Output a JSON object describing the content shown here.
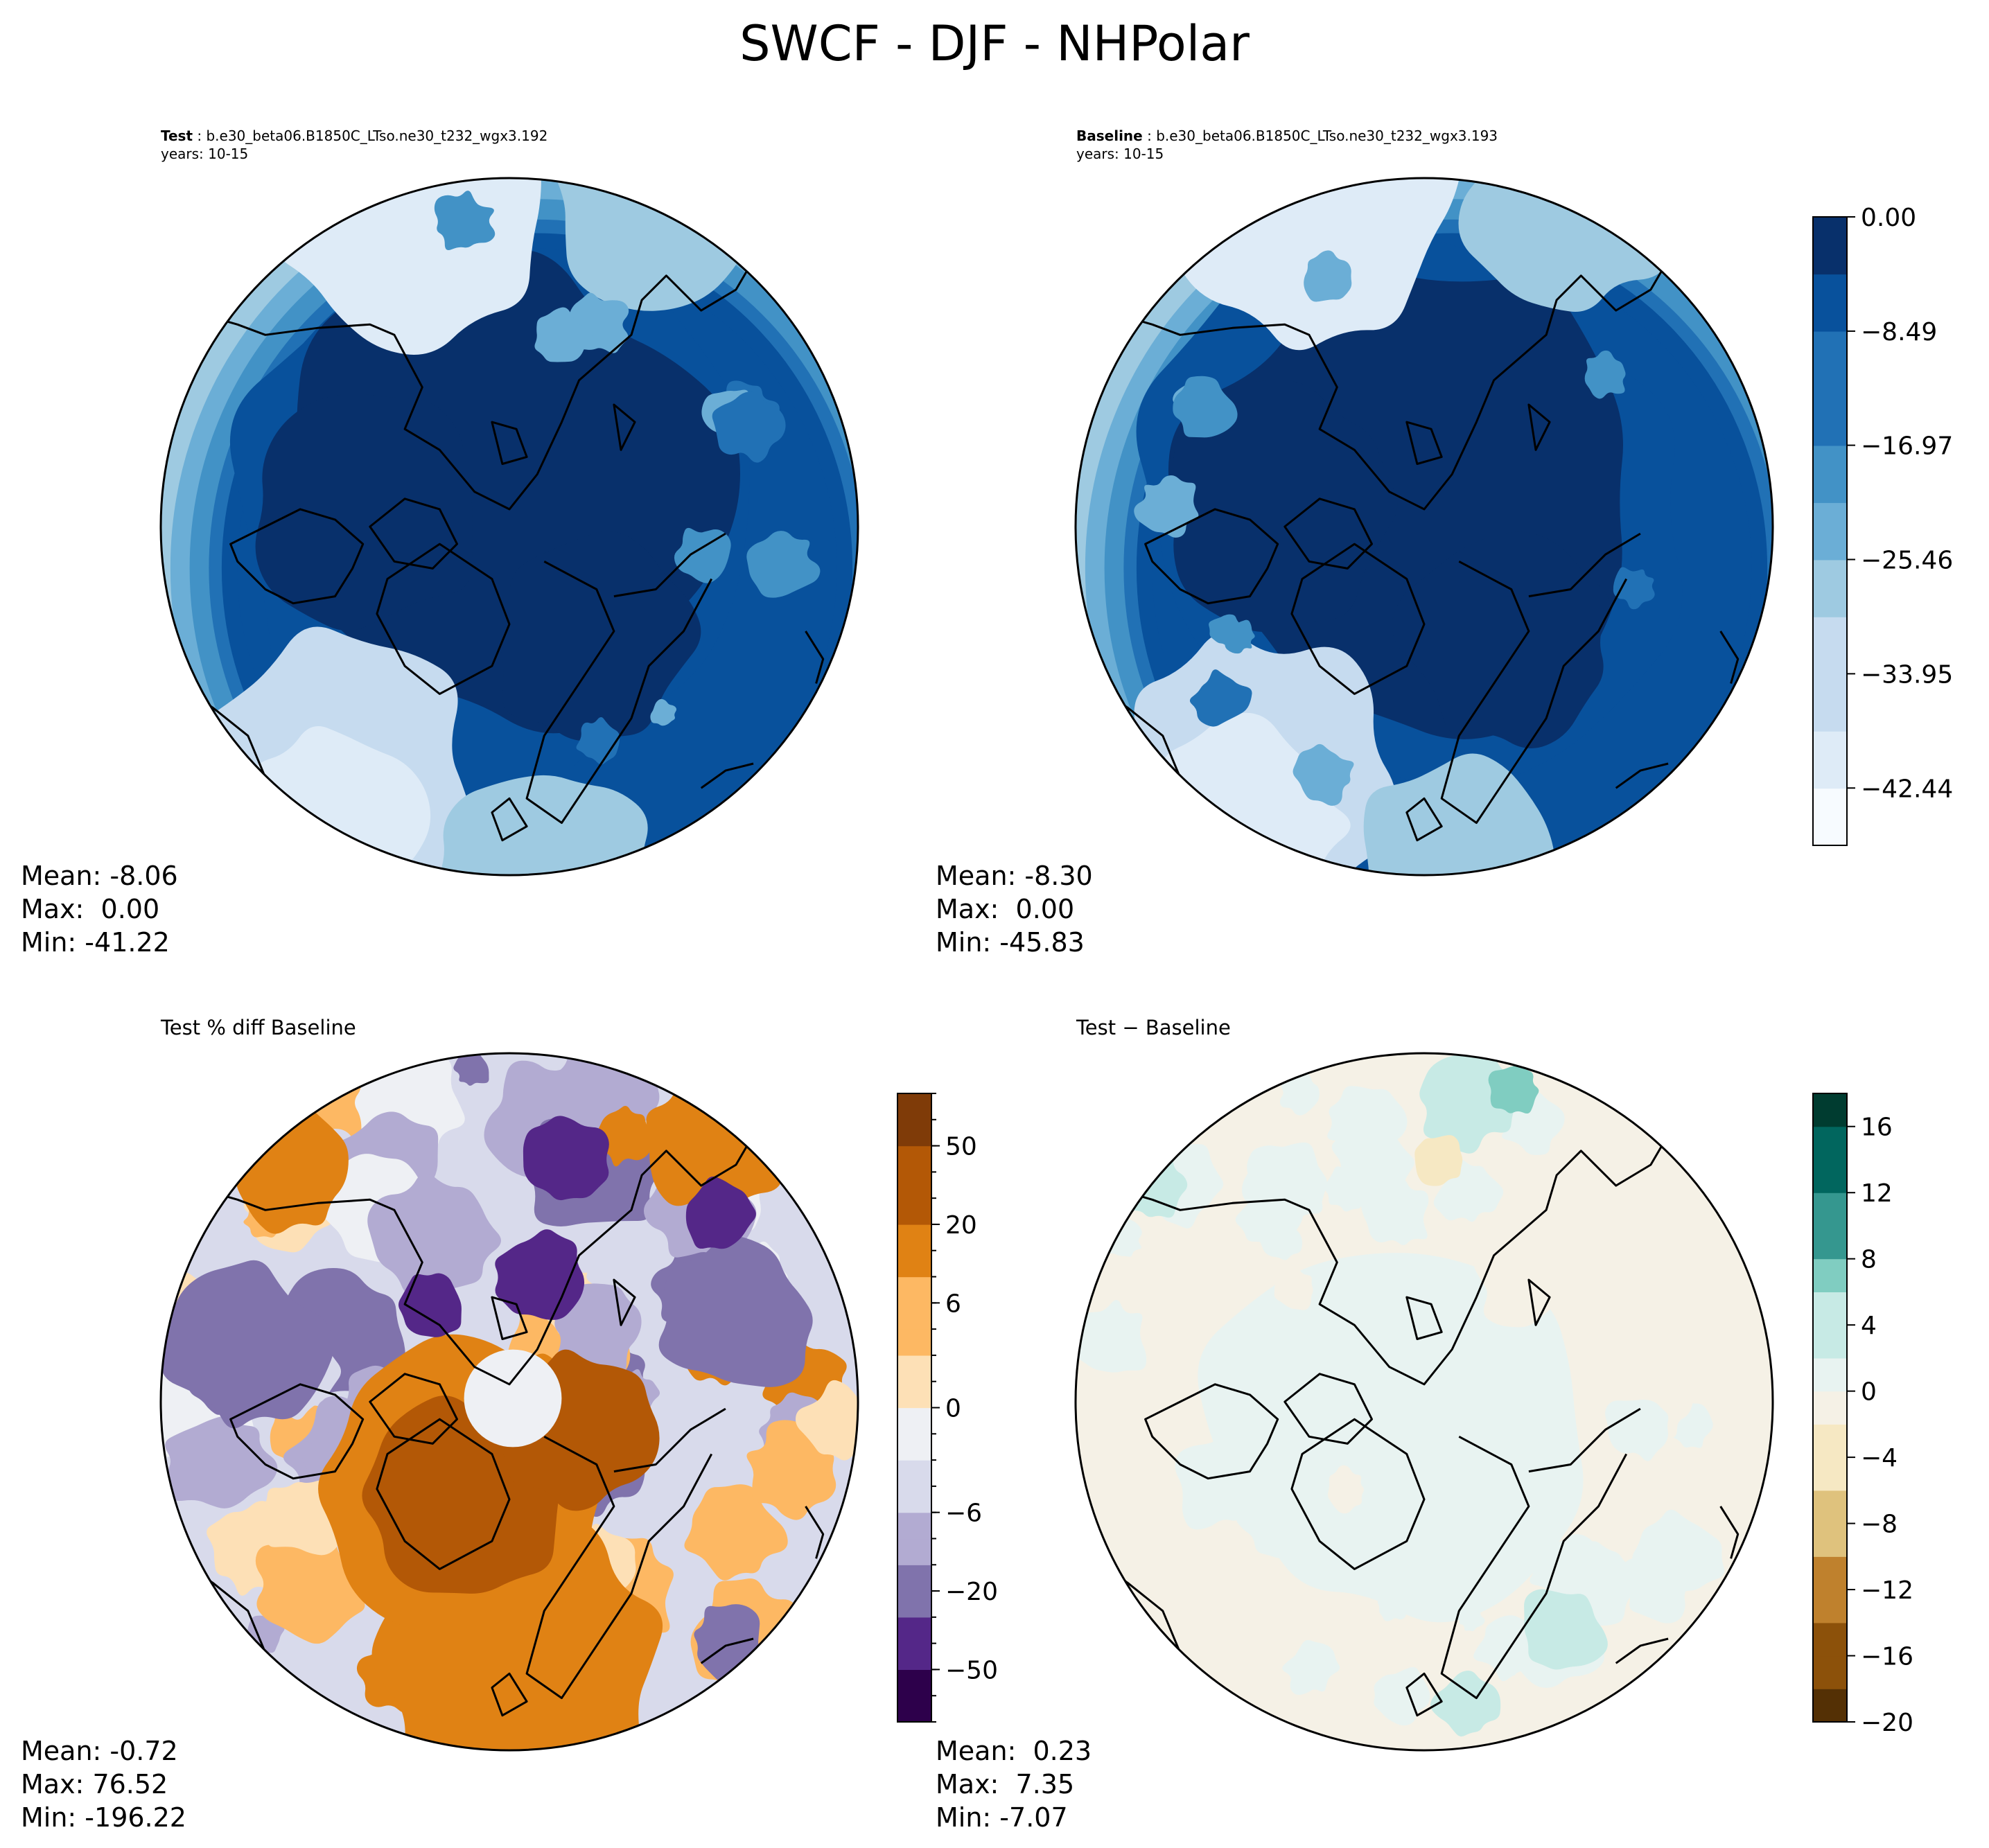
{
  "figure": {
    "title": "SWCF - DJF - NHPolar"
  },
  "colors": {
    "coastline": "#000000",
    "blues": [
      "#f7fbff",
      "#deebf7",
      "#c6dbef",
      "#9ecae1",
      "#6baed6",
      "#4292c6",
      "#2171b5",
      "#08519c",
      "#08306b"
    ],
    "purple_orange_neg": [
      "#2d004b",
      "#542788",
      "#8073ac",
      "#b2abd2",
      "#d8daeb",
      "#eef0f4"
    ],
    "purple_orange_pos": [
      "#fde0b6",
      "#fdb863",
      "#e08214",
      "#b35806",
      "#7f3b08"
    ],
    "brown_teal_neg": [
      "#543005",
      "#8c510a",
      "#bf812d",
      "#dfc27d",
      "#f6e8c3",
      "#f5f1e6"
    ],
    "brown_teal_pos": [
      "#e8f3f1",
      "#c7eae5",
      "#80cdc1",
      "#35978f",
      "#01665e",
      "#003c30"
    ]
  },
  "icons": [
    "circular-map-boundary",
    "coastline-outline"
  ],
  "panels": {
    "test": {
      "label": "Test",
      "case": " : b.e30_beta06.B1850C_LTso.ne30_t232_wgx3.192",
      "years": "years: 10-15",
      "mean": "Mean: -8.06",
      "max": "Max:  0.00",
      "min": "Min: -41.22"
    },
    "baseline": {
      "label": "Baseline",
      "case": " : b.e30_beta06.B1850C_LTso.ne30_t232_wgx3.193",
      "years": "years: 10-15",
      "mean": "Mean: -8.30",
      "max": "Max:  0.00",
      "min": "Min: -45.83"
    },
    "pctdiff": {
      "title": "Test % diff Baseline",
      "mean": "Mean: -0.72",
      "max": "Max: 76.52",
      "min": "Min: -196.22"
    },
    "diff": {
      "title": "Test − Baseline",
      "mean": "Mean:  0.23",
      "max": "Max:  7.35",
      "min": "Min: -7.07"
    }
  },
  "chart_data": [
    {
      "type": "heatmap",
      "name": "test",
      "projection": "north-polar-stereographic",
      "title": "Test : b.e30_beta06.B1850C_LTso.ne30_t232_wgx3.192",
      "variable": "SWCF",
      "season": "DJF",
      "years": "10-15",
      "mean": -8.06,
      "max": 0.0,
      "min": -41.22,
      "colorbar": "shared-blues"
    },
    {
      "type": "heatmap",
      "name": "baseline",
      "projection": "north-polar-stereographic",
      "title": "Baseline : b.e30_beta06.B1850C_LTso.ne30_t232_wgx3.193",
      "variable": "SWCF",
      "season": "DJF",
      "years": "10-15",
      "mean": -8.3,
      "max": 0.0,
      "min": -45.83,
      "colorbar": {
        "range": [
          -46.7,
          0
        ],
        "ticks": [
          0.0,
          -8.49,
          -16.97,
          -25.46,
          -33.95,
          -42.44
        ],
        "tick_labels": [
          "0.00",
          "−8.49",
          "−16.97",
          "−25.46",
          "−33.95",
          "−42.44"
        ]
      }
    },
    {
      "type": "heatmap",
      "name": "pctdiff",
      "projection": "north-polar-stereographic",
      "title": "Test % diff Baseline",
      "mean": -0.72,
      "max": 76.52,
      "min": -196.22,
      "colorbar": {
        "levels": [
          -100,
          -75,
          -50,
          -40,
          -30,
          -20,
          -15,
          -10,
          -6,
          -4,
          -2,
          -1,
          0,
          1,
          2,
          4,
          6,
          10,
          15,
          20,
          30,
          40,
          50,
          75,
          100
        ],
        "ticks": [
          50,
          20,
          6,
          0,
          -6,
          -20,
          -50
        ],
        "tick_labels": [
          "50",
          "20",
          "6",
          "0",
          "−6",
          "−20",
          "−50"
        ]
      }
    },
    {
      "type": "heatmap",
      "name": "diff",
      "projection": "north-polar-stereographic",
      "title": "Test − Baseline",
      "mean": 0.23,
      "max": 7.35,
      "min": -7.07,
      "colorbar": {
        "range": [
          -20,
          18
        ],
        "ticks": [
          16,
          12,
          8,
          4,
          0,
          -4,
          -8,
          -12,
          -16,
          -20
        ],
        "tick_labels": [
          "16",
          "12",
          "8",
          "4",
          "0",
          "−4",
          "−8",
          "−12",
          "−16",
          "−20"
        ]
      }
    }
  ]
}
